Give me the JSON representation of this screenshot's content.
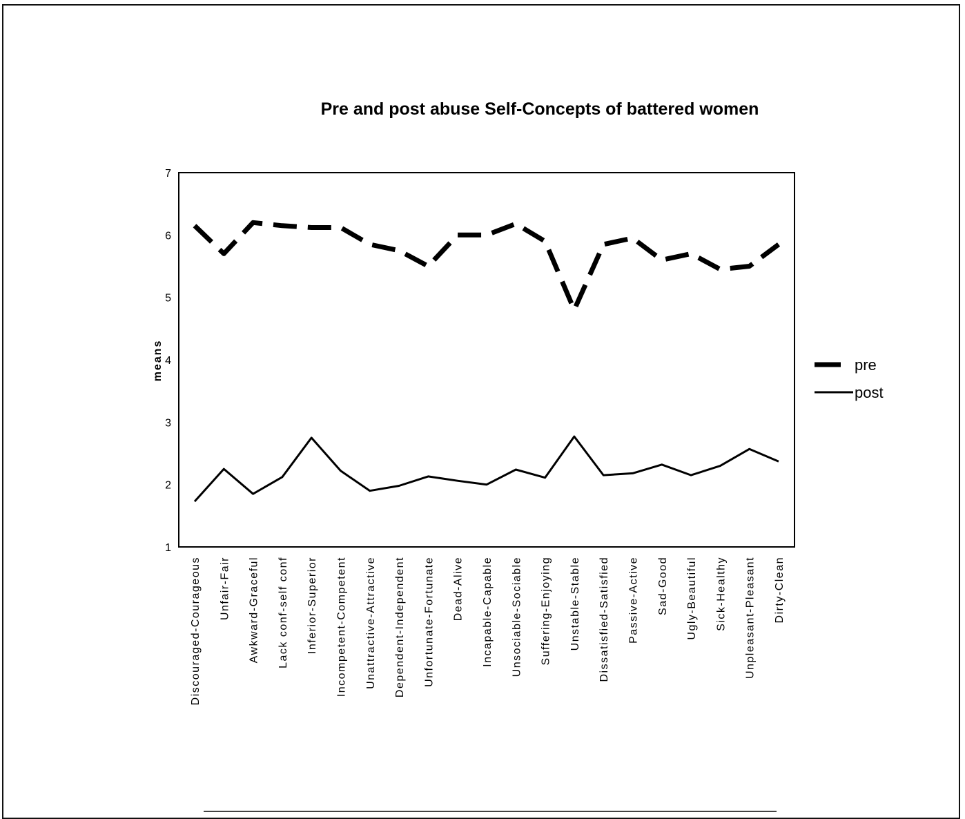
{
  "chart_data": {
    "type": "line",
    "title": "Pre and post abuse Self-Concepts of battered women",
    "xlabel": "",
    "ylabel": "means",
    "ylim": [
      1,
      7
    ],
    "yticks": [
      "1",
      "2",
      "3",
      "4",
      "5",
      "6",
      "7"
    ],
    "legend_position": "right",
    "grid": false,
    "categories": [
      "Discouraged-Courageous",
      "Unfair-Fair",
      "Awkward-Graceful",
      "Lack conf-self conf",
      "Inferior-Superior",
      "Incompetent-Competent",
      "Unattractive-Attractive",
      "Dependent-Independent",
      "Unfortunate-Fortunate",
      "Dead-Alive",
      "Incapable-Capable",
      "Unsociable-Sociable",
      "Suffering-Enjoying",
      "Unstable-Stable",
      "Dissatisfied-Satisfied",
      "Passive-Active",
      "Sad-Good",
      "Ugly-Beautiful",
      "Sick-Healthy",
      "Unpleasant-Pleasant",
      "Dirty-Clean"
    ],
    "series": [
      {
        "name": "pre",
        "style": "dashed",
        "color": "#000000",
        "values": [
          6.15,
          5.7,
          6.2,
          6.15,
          6.12,
          6.12,
          5.85,
          5.75,
          5.5,
          6.0,
          6.0,
          6.18,
          5.9,
          4.8,
          5.85,
          5.95,
          5.6,
          5.7,
          5.45,
          5.5,
          5.85
        ]
      },
      {
        "name": "post",
        "style": "solid",
        "color": "#000000",
        "values": [
          1.73,
          2.25,
          1.85,
          2.12,
          2.75,
          2.22,
          1.9,
          1.98,
          2.13,
          2.06,
          2.0,
          2.24,
          2.11,
          2.77,
          2.15,
          2.18,
          2.32,
          2.15,
          2.3,
          2.57,
          2.37
        ]
      }
    ]
  }
}
